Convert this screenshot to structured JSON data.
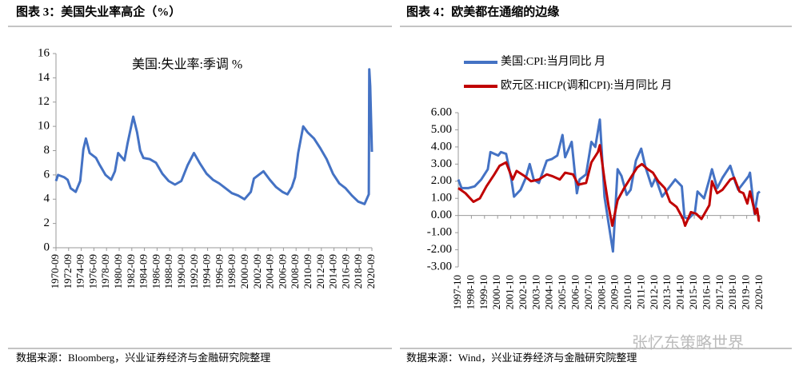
{
  "chart_data": [
    {
      "type": "line",
      "title": "图表 3：美国失业率高企（%）",
      "annotation": "美国:失业率:季调 %",
      "source": "数据来源：Bloomberg，兴业证券经济与金融研究院整理",
      "series": [
        {
          "name": "美国:失业率:季调 %",
          "color": "#4472c4",
          "x": [
            1970.67,
            1971.0,
            1972.0,
            1972.5,
            1973.0,
            1973.8,
            1974.5,
            1975.0,
            1975.4,
            1976.0,
            1977.0,
            1977.5,
            1978.5,
            1979.4,
            1980.0,
            1980.5,
            1981.0,
            1981.5,
            1982.0,
            1982.9,
            1983.5,
            1984.0,
            1984.5,
            1985.5,
            1986.5,
            1987.5,
            1988.5,
            1989.5,
            1990.5,
            1991.5,
            1992.5,
            1993.5,
            1994.5,
            1995.5,
            1996.5,
            1997.5,
            1998.5,
            1999.5,
            2000.5,
            2001.5,
            2002.0,
            2003.5,
            2004.5,
            2005.5,
            2006.5,
            2007.3,
            2008.0,
            2008.5,
            2009.0,
            2009.8,
            2010.5,
            2011.5,
            2012.5,
            2013.5,
            2014.5,
            2015.5,
            2016.5,
            2017.5,
            2018.5,
            2019.5,
            2020.17,
            2020.25,
            2020.4,
            2020.67
          ],
          "values": [
            5.5,
            6.0,
            5.8,
            5.6,
            4.9,
            4.6,
            5.5,
            8.1,
            9.0,
            7.8,
            7.4,
            6.9,
            6.0,
            5.6,
            6.3,
            7.8,
            7.5,
            7.2,
            8.6,
            10.8,
            9.5,
            8.0,
            7.4,
            7.3,
            7.0,
            6.1,
            5.5,
            5.2,
            5.5,
            6.8,
            7.8,
            6.9,
            6.1,
            5.6,
            5.3,
            4.9,
            4.5,
            4.3,
            4.0,
            4.6,
            5.7,
            6.3,
            5.6,
            5.0,
            4.6,
            4.4,
            5.0,
            5.8,
            7.8,
            10.0,
            9.5,
            9.0,
            8.2,
            7.3,
            6.1,
            5.3,
            4.9,
            4.3,
            3.8,
            3.6,
            4.4,
            14.7,
            13.3,
            7.9
          ]
        }
      ],
      "xlim": [
        1970.67,
        2020.67
      ],
      "xticks": [
        {
          "value": 1970.67,
          "label": "1970-09"
        },
        {
          "value": 1972.67,
          "label": "1972-09"
        },
        {
          "value": 1974.67,
          "label": "1974-09"
        },
        {
          "value": 1976.67,
          "label": "1976-09"
        },
        {
          "value": 1978.67,
          "label": "1978-09"
        },
        {
          "value": 1980.67,
          "label": "1980-09"
        },
        {
          "value": 1982.67,
          "label": "1982-09"
        },
        {
          "value": 1984.67,
          "label": "1984-09"
        },
        {
          "value": 1986.67,
          "label": "1986-09"
        },
        {
          "value": 1988.67,
          "label": "1988-09"
        },
        {
          "value": 1990.67,
          "label": "1990-09"
        },
        {
          "value": 1992.67,
          "label": "1992-09"
        },
        {
          "value": 1994.67,
          "label": "1994-09"
        },
        {
          "value": 1996.67,
          "label": "1996-09"
        },
        {
          "value": 1998.67,
          "label": "1998-09"
        },
        {
          "value": 2000.67,
          "label": "2000-09"
        },
        {
          "value": 2002.67,
          "label": "2002-09"
        },
        {
          "value": 2004.67,
          "label": "2004-09"
        },
        {
          "value": 2006.67,
          "label": "2006-09"
        },
        {
          "value": 2008.67,
          "label": "2008-09"
        },
        {
          "value": 2010.67,
          "label": "2010-09"
        },
        {
          "value": 2012.67,
          "label": "2012-09"
        },
        {
          "value": 2014.67,
          "label": "2014-09"
        },
        {
          "value": 2016.67,
          "label": "2016-09"
        },
        {
          "value": 2018.67,
          "label": "2018-09"
        },
        {
          "value": 2020.67,
          "label": "2020-09"
        }
      ],
      "ylim": [
        0,
        16
      ],
      "yticks": [
        0,
        2,
        4,
        6,
        8,
        10,
        12,
        14,
        16
      ],
      "grid": false
    },
    {
      "type": "line",
      "title": "图表 4：欧美都在通缩的边缘",
      "source": "数据来源：Wind，兴业证券经济与金融研究院整理",
      "watermark": "张忆东策略世界",
      "series": [
        {
          "name": "美国:CPI:当月同比  月",
          "color": "#4472c4",
          "x": [
            1997.75,
            1998.0,
            1998.5,
            1999.0,
            1999.5,
            2000.0,
            2000.2,
            2000.5,
            2000.8,
            2001.0,
            2001.4,
            2001.8,
            2002.0,
            2002.5,
            2002.9,
            2003.2,
            2003.5,
            2003.9,
            2004.5,
            2004.9,
            2005.3,
            2005.7,
            2005.9,
            2006.4,
            2006.8,
            2007.0,
            2007.5,
            2007.9,
            2008.2,
            2008.55,
            2008.9,
            2009.2,
            2009.55,
            2009.9,
            2010.2,
            2010.6,
            2010.9,
            2011.3,
            2011.7,
            2012.0,
            2012.5,
            2012.8,
            2013.3,
            2013.7,
            2014.3,
            2014.8,
            2015.0,
            2015.3,
            2015.8,
            2016.0,
            2016.5,
            2016.9,
            2017.1,
            2017.5,
            2017.9,
            2018.5,
            2018.9,
            2019.1,
            2019.4,
            2019.9,
            2020.0,
            2020.35,
            2020.6,
            2020.75
          ],
          "values": [
            2.1,
            1.6,
            1.6,
            1.7,
            2.1,
            2.7,
            3.7,
            3.6,
            3.5,
            3.7,
            3.6,
            2.1,
            1.1,
            1.5,
            2.2,
            3.0,
            2.1,
            1.9,
            3.2,
            3.3,
            3.5,
            4.7,
            3.4,
            4.3,
            1.3,
            2.1,
            2.4,
            4.3,
            4.0,
            5.6,
            1.1,
            -0.4,
            -2.1,
            2.7,
            2.3,
            1.2,
            1.5,
            3.2,
            3.9,
            2.9,
            1.7,
            2.2,
            1.1,
            1.5,
            2.1,
            1.7,
            -0.1,
            -0.2,
            0.2,
            1.4,
            1.0,
            2.1,
            2.7,
            1.6,
            2.2,
            2.9,
            1.9,
            1.5,
            1.8,
            2.3,
            2.5,
            0.1,
            1.3,
            1.4
          ]
        },
        {
          "name": "欧元区:HICP(调和CPI):当月同比  月",
          "color": "#c00000",
          "x": [
            1997.75,
            1998.3,
            1998.9,
            1999.4,
            1999.9,
            2000.5,
            2000.9,
            2001.4,
            2001.9,
            2002.2,
            2002.8,
            2003.3,
            2003.9,
            2004.5,
            2004.9,
            2005.5,
            2005.9,
            2006.5,
            2006.9,
            2007.5,
            2007.9,
            2008.4,
            2008.55,
            2008.9,
            2009.2,
            2009.5,
            2009.9,
            2010.4,
            2010.9,
            2011.4,
            2011.75,
            2012.2,
            2012.6,
            2013.0,
            2013.5,
            2013.9,
            2014.4,
            2014.9,
            2015.05,
            2015.5,
            2015.9,
            2016.3,
            2016.9,
            2017.1,
            2017.5,
            2017.9,
            2018.5,
            2018.8,
            2019.2,
            2019.5,
            2019.8,
            2020.0,
            2020.4,
            2020.55,
            2020.67,
            2020.75
          ],
          "values": [
            1.6,
            1.3,
            0.8,
            1.0,
            1.7,
            2.4,
            2.9,
            3.1,
            2.1,
            2.6,
            2.3,
            2.0,
            2.1,
            2.4,
            2.3,
            2.1,
            2.5,
            2.4,
            1.8,
            1.9,
            3.1,
            3.7,
            4.1,
            2.1,
            0.6,
            -0.6,
            0.9,
            1.6,
            2.2,
            2.8,
            3.0,
            2.7,
            2.5,
            2.0,
            1.6,
            0.8,
            0.5,
            -0.2,
            -0.6,
            0.2,
            0.1,
            -0.2,
            0.6,
            2.0,
            1.3,
            1.5,
            2.1,
            2.2,
            1.4,
            1.3,
            0.7,
            1.4,
            0.1,
            0.4,
            -0.3,
            -0.3
          ]
        }
      ],
      "xlim": [
        1997.75,
        2020.75
      ],
      "xticks": [
        {
          "value": 1997.75,
          "label": "1997-10"
        },
        {
          "value": 1998.75,
          "label": "1998-10"
        },
        {
          "value": 1999.75,
          "label": "1999-10"
        },
        {
          "value": 2000.75,
          "label": "2000-10"
        },
        {
          "value": 2001.75,
          "label": "2001-10"
        },
        {
          "value": 2002.75,
          "label": "2002-10"
        },
        {
          "value": 2003.75,
          "label": "2003-10"
        },
        {
          "value": 2004.75,
          "label": "2004-10"
        },
        {
          "value": 2005.75,
          "label": "2005-10"
        },
        {
          "value": 2006.75,
          "label": "2006-10"
        },
        {
          "value": 2007.75,
          "label": "2007-10"
        },
        {
          "value": 2008.75,
          "label": "2008-10"
        },
        {
          "value": 2009.75,
          "label": "2009-10"
        },
        {
          "value": 2010.75,
          "label": "2010-10"
        },
        {
          "value": 2011.75,
          "label": "2011-10"
        },
        {
          "value": 2012.75,
          "label": "2012-10"
        },
        {
          "value": 2013.75,
          "label": "2013-10"
        },
        {
          "value": 2014.75,
          "label": "2014-10"
        },
        {
          "value": 2015.75,
          "label": "2015-10"
        },
        {
          "value": 2016.75,
          "label": "2016-10"
        },
        {
          "value": 2017.75,
          "label": "2017-10"
        },
        {
          "value": 2018.75,
          "label": "2018-10"
        },
        {
          "value": 2019.75,
          "label": "2019-10"
        },
        {
          "value": 2020.75,
          "label": "2020-10"
        }
      ],
      "ylim": [
        -3,
        6
      ],
      "yticks": [
        {
          "value": -3,
          "label": "-3.00"
        },
        {
          "value": -2,
          "label": "-2.00"
        },
        {
          "value": -1,
          "label": "-1.00"
        },
        {
          "value": 0,
          "label": "0.00"
        },
        {
          "value": 1,
          "label": "1.00"
        },
        {
          "value": 2,
          "label": "2.00"
        },
        {
          "value": 3,
          "label": "3.00"
        },
        {
          "value": 4,
          "label": "4.00"
        },
        {
          "value": 5,
          "label": "5.00"
        },
        {
          "value": 6,
          "label": "6.00"
        }
      ],
      "grid": false,
      "legend": "top"
    }
  ]
}
